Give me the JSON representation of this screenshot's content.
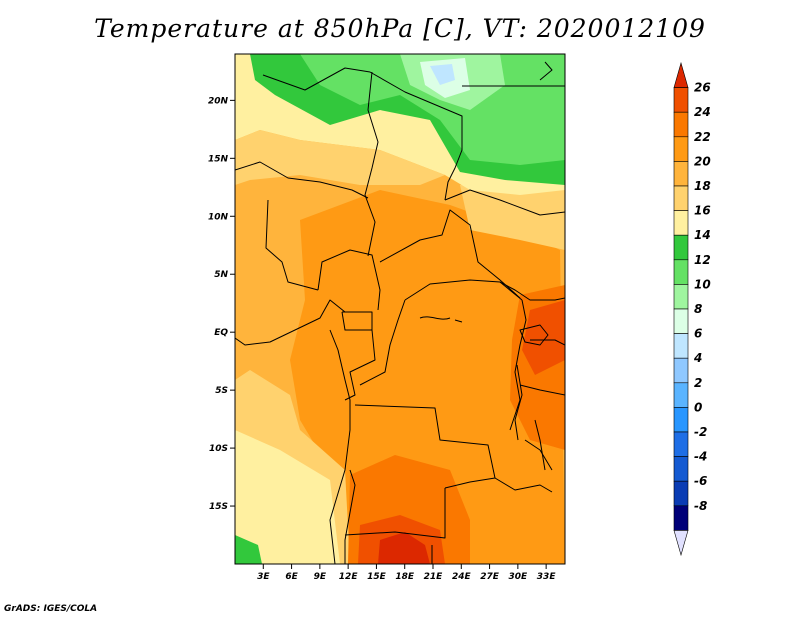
{
  "title": "Temperature at 850hPa [C], VT: 2020012109",
  "credit": "GrADS: IGES/COLA",
  "map": {
    "lon_range": [
      0,
      35
    ],
    "lat_range": [
      -20,
      24
    ],
    "x_ticks": [
      {
        "lon": 3,
        "label": "3E"
      },
      {
        "lon": 6,
        "label": "6E"
      },
      {
        "lon": 9,
        "label": "9E"
      },
      {
        "lon": 12,
        "label": "12E"
      },
      {
        "lon": 15,
        "label": "15E"
      },
      {
        "lon": 18,
        "label": "18E"
      },
      {
        "lon": 21,
        "label": "21E"
      },
      {
        "lon": 24,
        "label": "24E"
      },
      {
        "lon": 27,
        "label": "27E"
      },
      {
        "lon": 30,
        "label": "30E"
      },
      {
        "lon": 33,
        "label": "33E"
      }
    ],
    "y_ticks": [
      {
        "lat": 20,
        "label": "20N"
      },
      {
        "lat": 15,
        "label": "15N"
      },
      {
        "lat": 10,
        "label": "10N"
      },
      {
        "lat": 5,
        "label": "5N"
      },
      {
        "lat": 0,
        "label": "EQ"
      },
      {
        "lat": -5,
        "label": "5S"
      },
      {
        "lat": -10,
        "label": "10S"
      },
      {
        "lat": -15,
        "label": "15S"
      }
    ]
  },
  "colorbar": {
    "levels": [
      "26",
      "24",
      "22",
      "20",
      "18",
      "16",
      "14",
      "12",
      "10",
      "8",
      "6",
      "4",
      "2",
      "0",
      "-2",
      "-4",
      "-6",
      "-8"
    ],
    "colors_top_to_bottom": [
      "#dc2800",
      "#f05000",
      "#fa7800",
      "#ff9a14",
      "#ffb43c",
      "#ffd26e",
      "#fff0a0",
      "#32c83c",
      "#64e164",
      "#9ff59f",
      "#dcffe6",
      "#bfe6ff",
      "#8fc8ff",
      "#5ab4ff",
      "#2896ff",
      "#1e6ee6",
      "#145ad2",
      "#0a3cb4",
      "#000078",
      "#e1e1ff"
    ]
  },
  "field_colors": {
    "t12_14": "#32c83c",
    "t10_12": "#64e164",
    "t8_10": "#9ff59f",
    "t6_8": "#dcffe6",
    "t4_6": "#bfe6ff",
    "t14_16": "#fff0a0",
    "t16_18": "#ffd26e",
    "t18_20": "#ffb43c",
    "t20_22": "#ff9a14",
    "t22_24": "#fa7800",
    "t24_26": "#f05000",
    "t26_plus": "#dc2800"
  }
}
